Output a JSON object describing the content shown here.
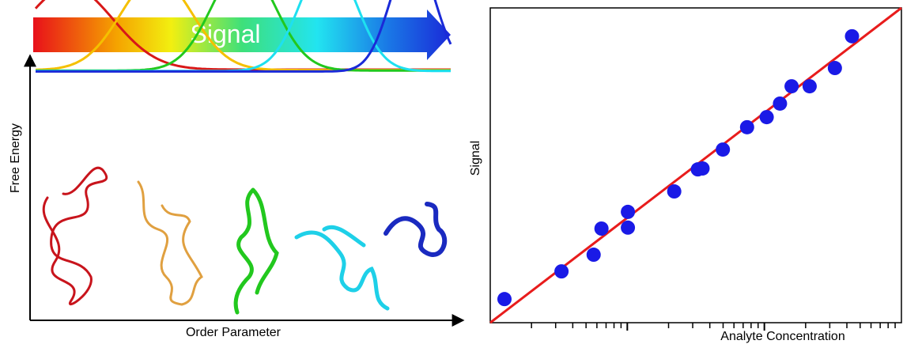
{
  "left_panel": {
    "arrow_label": "Signal",
    "y_label": "Free Energy",
    "x_label": "Order Parameter"
  },
  "chart_data": {
    "type": "scatter",
    "x_label": "Analyte Concentration",
    "y_label": "Signal",
    "log_x": true,
    "xlim": [
      1,
      1000
    ],
    "ylim": [
      0,
      100
    ],
    "xticks": [
      2,
      3,
      4,
      5,
      6,
      7,
      8,
      9,
      10,
      20,
      30,
      40,
      50,
      60,
      70,
      80,
      90,
      100,
      200,
      300,
      400,
      500,
      600,
      700,
      800,
      900
    ],
    "x": [
      1.27,
      3.31,
      5.68,
      6.48,
      10.1,
      10.1,
      22,
      32.7,
      35.4,
      49.8,
      74.8,
      104,
      130,
      158,
      214,
      327,
      436
    ],
    "y": [
      7.5,
      16.3,
      21.6,
      29.9,
      35.2,
      30.2,
      41.7,
      48.7,
      49,
      55,
      62.1,
      65.3,
      69.6,
      75.1,
      75.1,
      80.9,
      91
    ],
    "color": "#1a1ae6",
    "fit": {
      "x": [
        1,
        1000
      ],
      "y": [
        0,
        100
      ],
      "color": "#e81c1c"
    }
  }
}
